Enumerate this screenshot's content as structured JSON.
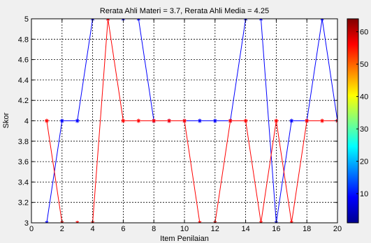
{
  "chart_data": {
    "type": "line",
    "title": "Rerata Ahli Materi = 3.7, Rerata Ahli Media = 4.25",
    "xlabel": "Item Penilaian",
    "ylabel": "Skor",
    "xlim": [
      0,
      20
    ],
    "ylim": [
      3,
      5
    ],
    "x_ticks": [
      0,
      2,
      4,
      6,
      8,
      10,
      12,
      14,
      16,
      18,
      20
    ],
    "y_ticks": [
      3,
      3.2,
      3.4,
      3.6,
      3.8,
      4,
      4.2,
      4.4,
      4.6,
      4.8,
      5
    ],
    "grid": true,
    "legend": "none",
    "x": [
      1,
      2,
      3,
      4,
      5,
      6,
      7,
      8,
      9,
      10,
      11,
      12,
      13,
      14,
      15,
      16,
      17,
      18,
      19,
      20
    ],
    "series": [
      {
        "color": "#0000ff",
        "marker": "*",
        "values": [
          3,
          4,
          4,
          5,
          5,
          5,
          5,
          4,
          4,
          4,
          4,
          4,
          4,
          5,
          5,
          3,
          4,
          4,
          5,
          4
        ]
      },
      {
        "color": "#ff0000",
        "marker": "*",
        "values": [
          4,
          3,
          3,
          3,
          5,
          4,
          4,
          4,
          4,
          4,
          3,
          3,
          4,
          4,
          3,
          4,
          3,
          4,
          4,
          4
        ]
      }
    ],
    "colorbar": {
      "colormap": "jet",
      "ticks": [
        10,
        20,
        30,
        40,
        50,
        60
      ],
      "tick_labels": [
        "10",
        "20",
        "30",
        "40",
        "50",
        "60"
      ],
      "range": [
        1,
        64
      ]
    }
  }
}
